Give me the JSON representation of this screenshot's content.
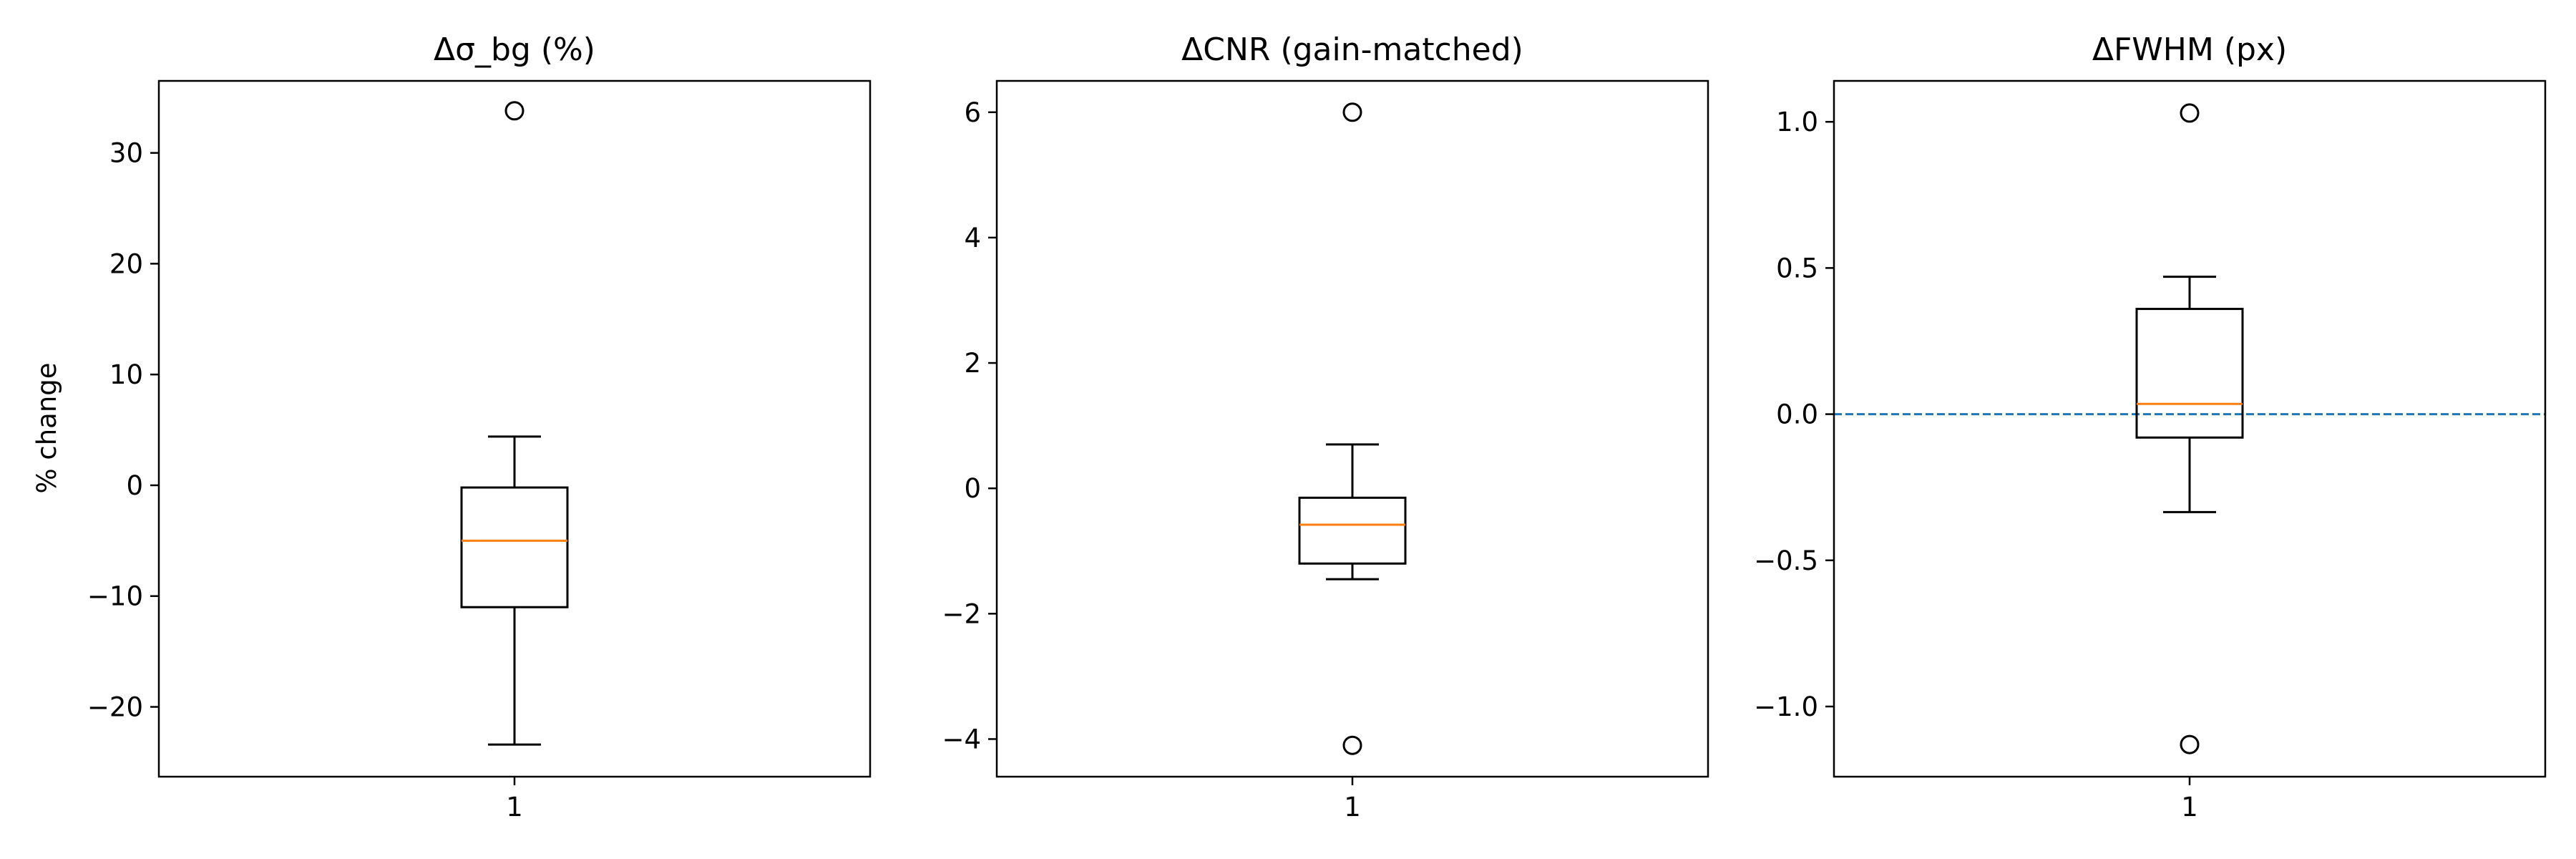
{
  "figure": {
    "ylabel": "% change"
  },
  "chart_data": [
    {
      "type": "box",
      "title": "Δσ_bg (%)",
      "categories": [
        "1"
      ],
      "ylim": [
        -26.3,
        36.5
      ],
      "yticks": [
        30,
        20,
        10,
        0,
        -10,
        -20
      ],
      "ytick_labels": [
        "30",
        "20",
        "10",
        "0",
        "−10",
        "−20"
      ],
      "box": {
        "whislo": -23.4,
        "q1": -11.0,
        "med": -5.0,
        "q3": -0.2,
        "whishi": 4.4,
        "fliers": [
          33.8
        ]
      },
      "reference_line": null,
      "grid": false,
      "colors": {
        "box": "#000000",
        "median": "#ff7f0e"
      }
    },
    {
      "type": "box",
      "title": "ΔCNR (gain-matched)",
      "categories": [
        "1"
      ],
      "ylim": [
        -4.6,
        6.5
      ],
      "yticks": [
        6,
        4,
        2,
        0,
        -2,
        -4
      ],
      "ytick_labels": [
        "6",
        "4",
        "2",
        "0",
        "−2",
        "−4"
      ],
      "box": {
        "whislo": -1.45,
        "q1": -1.2,
        "med": -0.58,
        "q3": -0.15,
        "whishi": 0.7,
        "fliers": [
          6.0,
          -4.1
        ]
      },
      "reference_line": null,
      "grid": false,
      "colors": {
        "box": "#000000",
        "median": "#ff7f0e"
      }
    },
    {
      "type": "box",
      "title": "ΔFWHM (px)",
      "categories": [
        "1"
      ],
      "ylim": [
        -1.24,
        1.14
      ],
      "yticks": [
        1.0,
        0.5,
        0.0,
        -0.5,
        -1.0
      ],
      "ytick_labels": [
        "1.0",
        "0.5",
        "0.0",
        "−0.5",
        "−1.0"
      ],
      "box": {
        "whislo": -0.335,
        "q1": -0.08,
        "med": 0.035,
        "q3": 0.36,
        "whishi": 0.47,
        "fliers": [
          1.03,
          -1.13
        ]
      },
      "reference_line": {
        "y": 0.0,
        "style": "dashed",
        "color": "#1f77b4"
      },
      "grid": false,
      "colors": {
        "box": "#000000",
        "median": "#ff7f0e"
      }
    }
  ]
}
